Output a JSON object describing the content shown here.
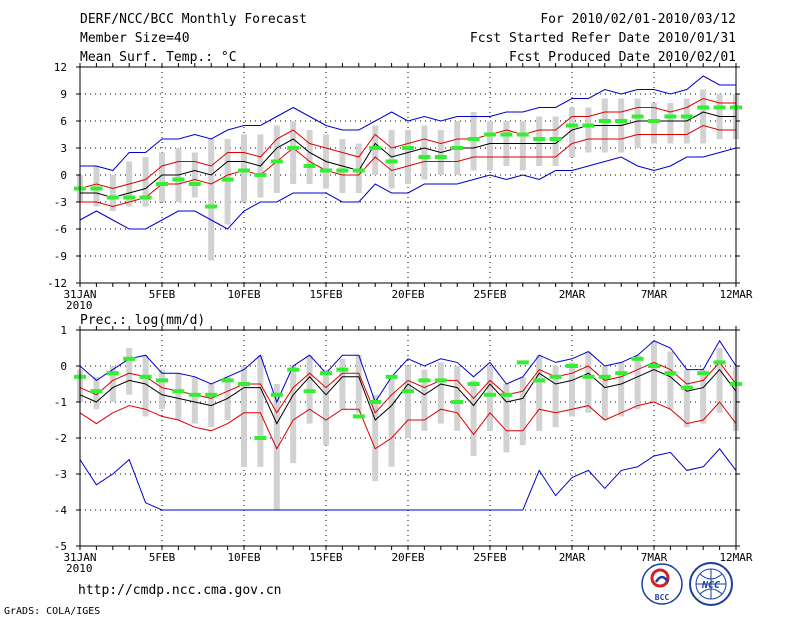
{
  "header": {
    "left": [
      "DERF/NCC/BCC Monthly Forecast",
      "Member Size=40",
      "Mean Surf. Temp.: °C"
    ],
    "right": [
      "For 2010/02/01-2010/03/12",
      "Fcst Started Refer Date 2010/01/31",
      "Fcst Produced Date 2010/02/01"
    ]
  },
  "footer": {
    "url": "http://cmdp.ncc.cma.gov.cn",
    "credit": "GrADS: COLA/IGES"
  },
  "logos": {
    "bcc": "BCC",
    "ncc": "NCC"
  },
  "colors": {
    "blue": "#0000cc",
    "red": "#dd0000",
    "black": "#000000",
    "green": "#33ee33",
    "gray": "#d2d2d2"
  },
  "chart_data": [
    {
      "type": "line",
      "title": "",
      "xlabel": "",
      "ylabel": "",
      "ylim": [
        -12,
        12
      ],
      "yticks": [
        "-12",
        "-9",
        "-6",
        "-3",
        "0",
        "3",
        "6",
        "9",
        "12"
      ],
      "xlim": [
        0,
        40
      ],
      "xticks": [
        {
          "day": 0,
          "label": "31JAN"
        },
        {
          "day": 5,
          "label": "5FEB"
        },
        {
          "day": 10,
          "label": "10FEB"
        },
        {
          "day": 15,
          "label": "15FEB"
        },
        {
          "day": 20,
          "label": "20FEB"
        },
        {
          "day": 25,
          "label": "25FEB"
        },
        {
          "day": 30,
          "label": "2MAR"
        },
        {
          "day": 35,
          "label": "7MAR"
        },
        {
          "day": 40,
          "label": "12MAR"
        }
      ],
      "year_label": "2010",
      "series": [
        {
          "name": "max",
          "color": "#0000cc",
          "values": [
            1,
            1,
            0.5,
            2.5,
            2.5,
            4,
            4,
            4.5,
            4,
            5,
            5.5,
            5.5,
            6.5,
            7.5,
            6.5,
            5.5,
            5,
            5,
            6,
            7,
            6,
            6.5,
            6,
            6.5,
            6.5,
            6.5,
            7,
            7,
            7.5,
            7.5,
            8.5,
            8.5,
            9.5,
            9,
            9.5,
            9.5,
            9,
            9.5,
            11,
            10,
            10
          ]
        },
        {
          "name": "upper",
          "color": "#dd0000",
          "values": [
            -1.5,
            -1,
            -1.5,
            -1,
            -0.5,
            1,
            1.5,
            1.5,
            1,
            2.5,
            2.5,
            2,
            4,
            5,
            3.5,
            3,
            2.5,
            2,
            4.5,
            3,
            3.5,
            4,
            3.5,
            4,
            4,
            4.5,
            5,
            4.5,
            5,
            5,
            6.5,
            6.5,
            7,
            7,
            7.5,
            7.5,
            7,
            7.5,
            8.5,
            8,
            8
          ]
        },
        {
          "name": "mean",
          "color": "#000000",
          "values": [
            -2,
            -2,
            -2.5,
            -2,
            -1.5,
            0,
            0,
            0.5,
            0,
            1.5,
            1.5,
            1,
            3,
            4,
            2.5,
            1.5,
            1,
            0.5,
            3.5,
            2,
            2.5,
            3,
            2.5,
            3,
            3,
            3.5,
            3.5,
            3.5,
            3.5,
            3.5,
            5,
            5.5,
            5.5,
            5.5,
            6,
            6,
            6,
            6,
            7,
            6.5,
            6.5
          ]
        },
        {
          "name": "lower",
          "color": "#dd0000",
          "values": [
            -3,
            -3,
            -3.5,
            -3,
            -2.5,
            -1,
            -1,
            -0.5,
            -1,
            0,
            0.5,
            0,
            1.5,
            3,
            1.5,
            0.5,
            0,
            0,
            2,
            0.5,
            1,
            1.5,
            1.5,
            1.5,
            2,
            2,
            2,
            2,
            2,
            2,
            3.5,
            4,
            4,
            4,
            4.5,
            4.5,
            4.5,
            4.5,
            5.5,
            5,
            5
          ]
        },
        {
          "name": "min",
          "color": "#0000cc",
          "values": [
            -5,
            -4,
            -5,
            -6,
            -6,
            -5,
            -4,
            -4,
            -5,
            -6,
            -4,
            -3,
            -3,
            -2,
            -2,
            -2,
            -3,
            -3,
            -1,
            -2,
            -2,
            -1,
            -1,
            -1,
            -0.5,
            0,
            -0.5,
            0,
            -0.5,
            0.5,
            0.5,
            1,
            1.5,
            2,
            1,
            0.5,
            1,
            2,
            2,
            2.5,
            3
          ]
        },
        {
          "name": "range_high",
          "color": "#d2d2d2",
          "values": [
            0,
            1,
            0,
            1.5,
            2,
            2.5,
            3,
            2.5,
            4,
            4,
            4.5,
            4.5,
            5.5,
            6,
            5,
            4.5,
            4,
            3.5,
            5.5,
            5,
            5,
            5.5,
            5,
            6,
            7,
            6,
            6,
            6,
            6.5,
            6.5,
            7.5,
            7.5,
            8.5,
            8.5,
            8.5,
            8,
            8,
            8.5,
            9.5,
            9,
            9
          ]
        },
        {
          "name": "range_low",
          "color": "#d2d2d2",
          "values": [
            -3,
            -3.5,
            -4,
            -3.5,
            -3.5,
            -3,
            -3,
            -2.5,
            -9.5,
            -5.5,
            -3,
            -2.5,
            -2,
            -1,
            -1,
            -1.5,
            -2,
            -2,
            0,
            -1.5,
            -1,
            -0.5,
            0,
            0,
            0.5,
            0.5,
            1,
            0.5,
            1,
            1,
            2,
            2.5,
            2.5,
            2.5,
            3,
            3.5,
            3.5,
            3.5,
            3.5,
            4,
            4
          ]
        },
        {
          "name": "dash",
          "color": "#33ee33",
          "values": [
            -1.5,
            -1.5,
            -2.5,
            -2.5,
            -2.5,
            -1,
            -0.5,
            -1,
            -3.5,
            -0.5,
            0.5,
            0,
            1.5,
            3,
            1,
            0.5,
            0.5,
            0.5,
            3,
            1.5,
            3,
            2,
            2,
            3,
            4,
            4.5,
            4.5,
            4.5,
            4,
            4,
            5.5,
            5.5,
            6,
            6,
            6.5,
            6,
            6.5,
            6.5,
            7.5,
            7.5,
            7.5
          ]
        }
      ]
    },
    {
      "type": "line",
      "title": "Prec.: log(mm/d)",
      "xlabel": "",
      "ylabel": "",
      "ylim": [
        -5,
        1
      ],
      "yticks": [
        "-5",
        "-4",
        "-3",
        "-2",
        "-1",
        "0",
        "1"
      ],
      "xlim": [
        0,
        40
      ],
      "xticks": [
        {
          "day": 0,
          "label": "31JAN"
        },
        {
          "day": 5,
          "label": "5FEB"
        },
        {
          "day": 10,
          "label": "10FEB"
        },
        {
          "day": 15,
          "label": "15FEB"
        },
        {
          "day": 20,
          "label": "20FEB"
        },
        {
          "day": 25,
          "label": "25FEB"
        },
        {
          "day": 30,
          "label": "2MAR"
        },
        {
          "day": 35,
          "label": "7MAR"
        },
        {
          "day": 40,
          "label": "12MAR"
        }
      ],
      "year_label": "2010",
      "series": [
        {
          "name": "max",
          "color": "#0000cc",
          "values": [
            0,
            -0.4,
            -0.1,
            0.2,
            0.3,
            -0.2,
            -0.2,
            -0.3,
            -0.5,
            -0.3,
            -0.1,
            0.3,
            -1,
            0,
            0.3,
            -0.2,
            0.3,
            0.3,
            -1,
            -0.3,
            0.2,
            0,
            0.2,
            0.1,
            -0.3,
            0.1,
            -0.5,
            -0.3,
            0.3,
            0.1,
            0.2,
            0.4,
            0,
            0.1,
            0.3,
            0.7,
            0.5,
            -0.1,
            -0.1,
            0.7,
            0
          ]
        },
        {
          "name": "upper",
          "color": "#dd0000",
          "values": [
            -0.6,
            -0.8,
            -0.4,
            -0.2,
            -0.3,
            -0.6,
            -0.7,
            -0.8,
            -0.9,
            -0.7,
            -0.5,
            -0.5,
            -1.3,
            -0.6,
            -0.2,
            -0.6,
            -0.2,
            -0.2,
            -1.3,
            -0.8,
            -0.4,
            -0.6,
            -0.4,
            -0.4,
            -0.9,
            -0.4,
            -0.8,
            -0.7,
            -0.1,
            -0.3,
            -0.2,
            0,
            -0.4,
            -0.3,
            -0.1,
            0.1,
            -0.1,
            -0.5,
            -0.4,
            0.1,
            -0.5
          ]
        },
        {
          "name": "mean",
          "color": "#000000",
          "values": [
            -0.8,
            -1,
            -0.6,
            -0.4,
            -0.5,
            -0.8,
            -0.9,
            -1,
            -1.1,
            -0.9,
            -0.6,
            -0.6,
            -1.6,
            -0.8,
            -0.3,
            -0.8,
            -0.3,
            -0.3,
            -1.5,
            -1.1,
            -0.5,
            -0.8,
            -0.5,
            -0.6,
            -1.1,
            -0.5,
            -1,
            -0.9,
            -0.2,
            -0.5,
            -0.4,
            -0.2,
            -0.6,
            -0.5,
            -0.3,
            -0.1,
            -0.3,
            -0.7,
            -0.6,
            -0.1,
            -0.7
          ]
        },
        {
          "name": "lower",
          "color": "#dd0000",
          "values": [
            -1.3,
            -1.6,
            -1.3,
            -1.1,
            -1.2,
            -1.4,
            -1.5,
            -1.7,
            -1.8,
            -1.6,
            -1.3,
            -1.3,
            -2.3,
            -1.5,
            -1.2,
            -1.5,
            -1.2,
            -1.2,
            -2.3,
            -2,
            -1.5,
            -1.5,
            -1.2,
            -1.3,
            -1.9,
            -1.3,
            -1.8,
            -1.8,
            -1.2,
            -1.3,
            -1.2,
            -1.1,
            -1.5,
            -1.3,
            -1.1,
            -1,
            -1.2,
            -1.6,
            -1.5,
            -1,
            -1.6
          ]
        },
        {
          "name": "min",
          "color": "#0000cc",
          "values": [
            -2.6,
            -3.3,
            -3,
            -2.6,
            -3.8,
            -4,
            -4,
            -4,
            -4,
            -4,
            -4,
            -4,
            -4,
            -4,
            -4,
            -4,
            -4,
            -4,
            -4,
            -4,
            -4,
            -4,
            -4,
            -4,
            -4,
            -4,
            -4,
            -4,
            -2.9,
            -3.6,
            -3.1,
            -2.9,
            -3.4,
            -2.9,
            -2.8,
            -2.5,
            -2.4,
            -2.9,
            -2.8,
            -2.3,
            -2.9
          ]
        },
        {
          "name": "range_high",
          "color": "#d2d2d2",
          "values": [
            -0.1,
            -0.3,
            0,
            0.5,
            0.3,
            -0.1,
            -0.2,
            -0.3,
            -0.5,
            -0.3,
            0,
            0.3,
            -0.5,
            0,
            0.3,
            -0.1,
            0.2,
            0.3,
            -0.8,
            -0.3,
            0,
            -0.1,
            0.1,
            0,
            -0.4,
            0,
            -0.5,
            -0.3,
            0.3,
            0,
            0.1,
            0.4,
            0,
            0.1,
            0.3,
            0.7,
            0.4,
            -0.1,
            -0.1,
            0.5,
            0
          ]
        },
        {
          "name": "range_low",
          "color": "#d2d2d2",
          "values": [
            -1,
            -1.2,
            -1,
            -0.8,
            -1.4,
            -1.2,
            -1.5,
            -1.6,
            -1.7,
            -1.5,
            -2.8,
            -2.8,
            -4,
            -2.7,
            -1.6,
            -2.2,
            -1.2,
            -1.3,
            -3.2,
            -2.8,
            -2,
            -1.8,
            -1.6,
            -1.8,
            -2.5,
            -1.8,
            -2.4,
            -2.2,
            -1.8,
            -1.7,
            -1.4,
            -1.3,
            -1.5,
            -1.4,
            -1.2,
            -1,
            -1.2,
            -1.7,
            -1.6,
            -1.3,
            -1.8
          ]
        },
        {
          "name": "dash",
          "color": "#33ee33",
          "values": [
            -0.3,
            -0.7,
            -0.2,
            0.2,
            -0.3,
            -0.4,
            -0.7,
            -0.8,
            -0.8,
            -0.4,
            -0.5,
            -2,
            -0.8,
            -0.1,
            -0.7,
            -0.2,
            -0.1,
            -1.4,
            -1,
            -0.3,
            -0.7,
            -0.4,
            -0.4,
            -1,
            -0.5,
            -0.8,
            -0.8,
            0.1,
            -0.4,
            -0.3,
            0,
            -0.3,
            -0.3,
            -0.2,
            0.2,
            0,
            -0.2,
            -0.6,
            -0.2,
            0.1,
            -0.5
          ]
        }
      ]
    }
  ]
}
